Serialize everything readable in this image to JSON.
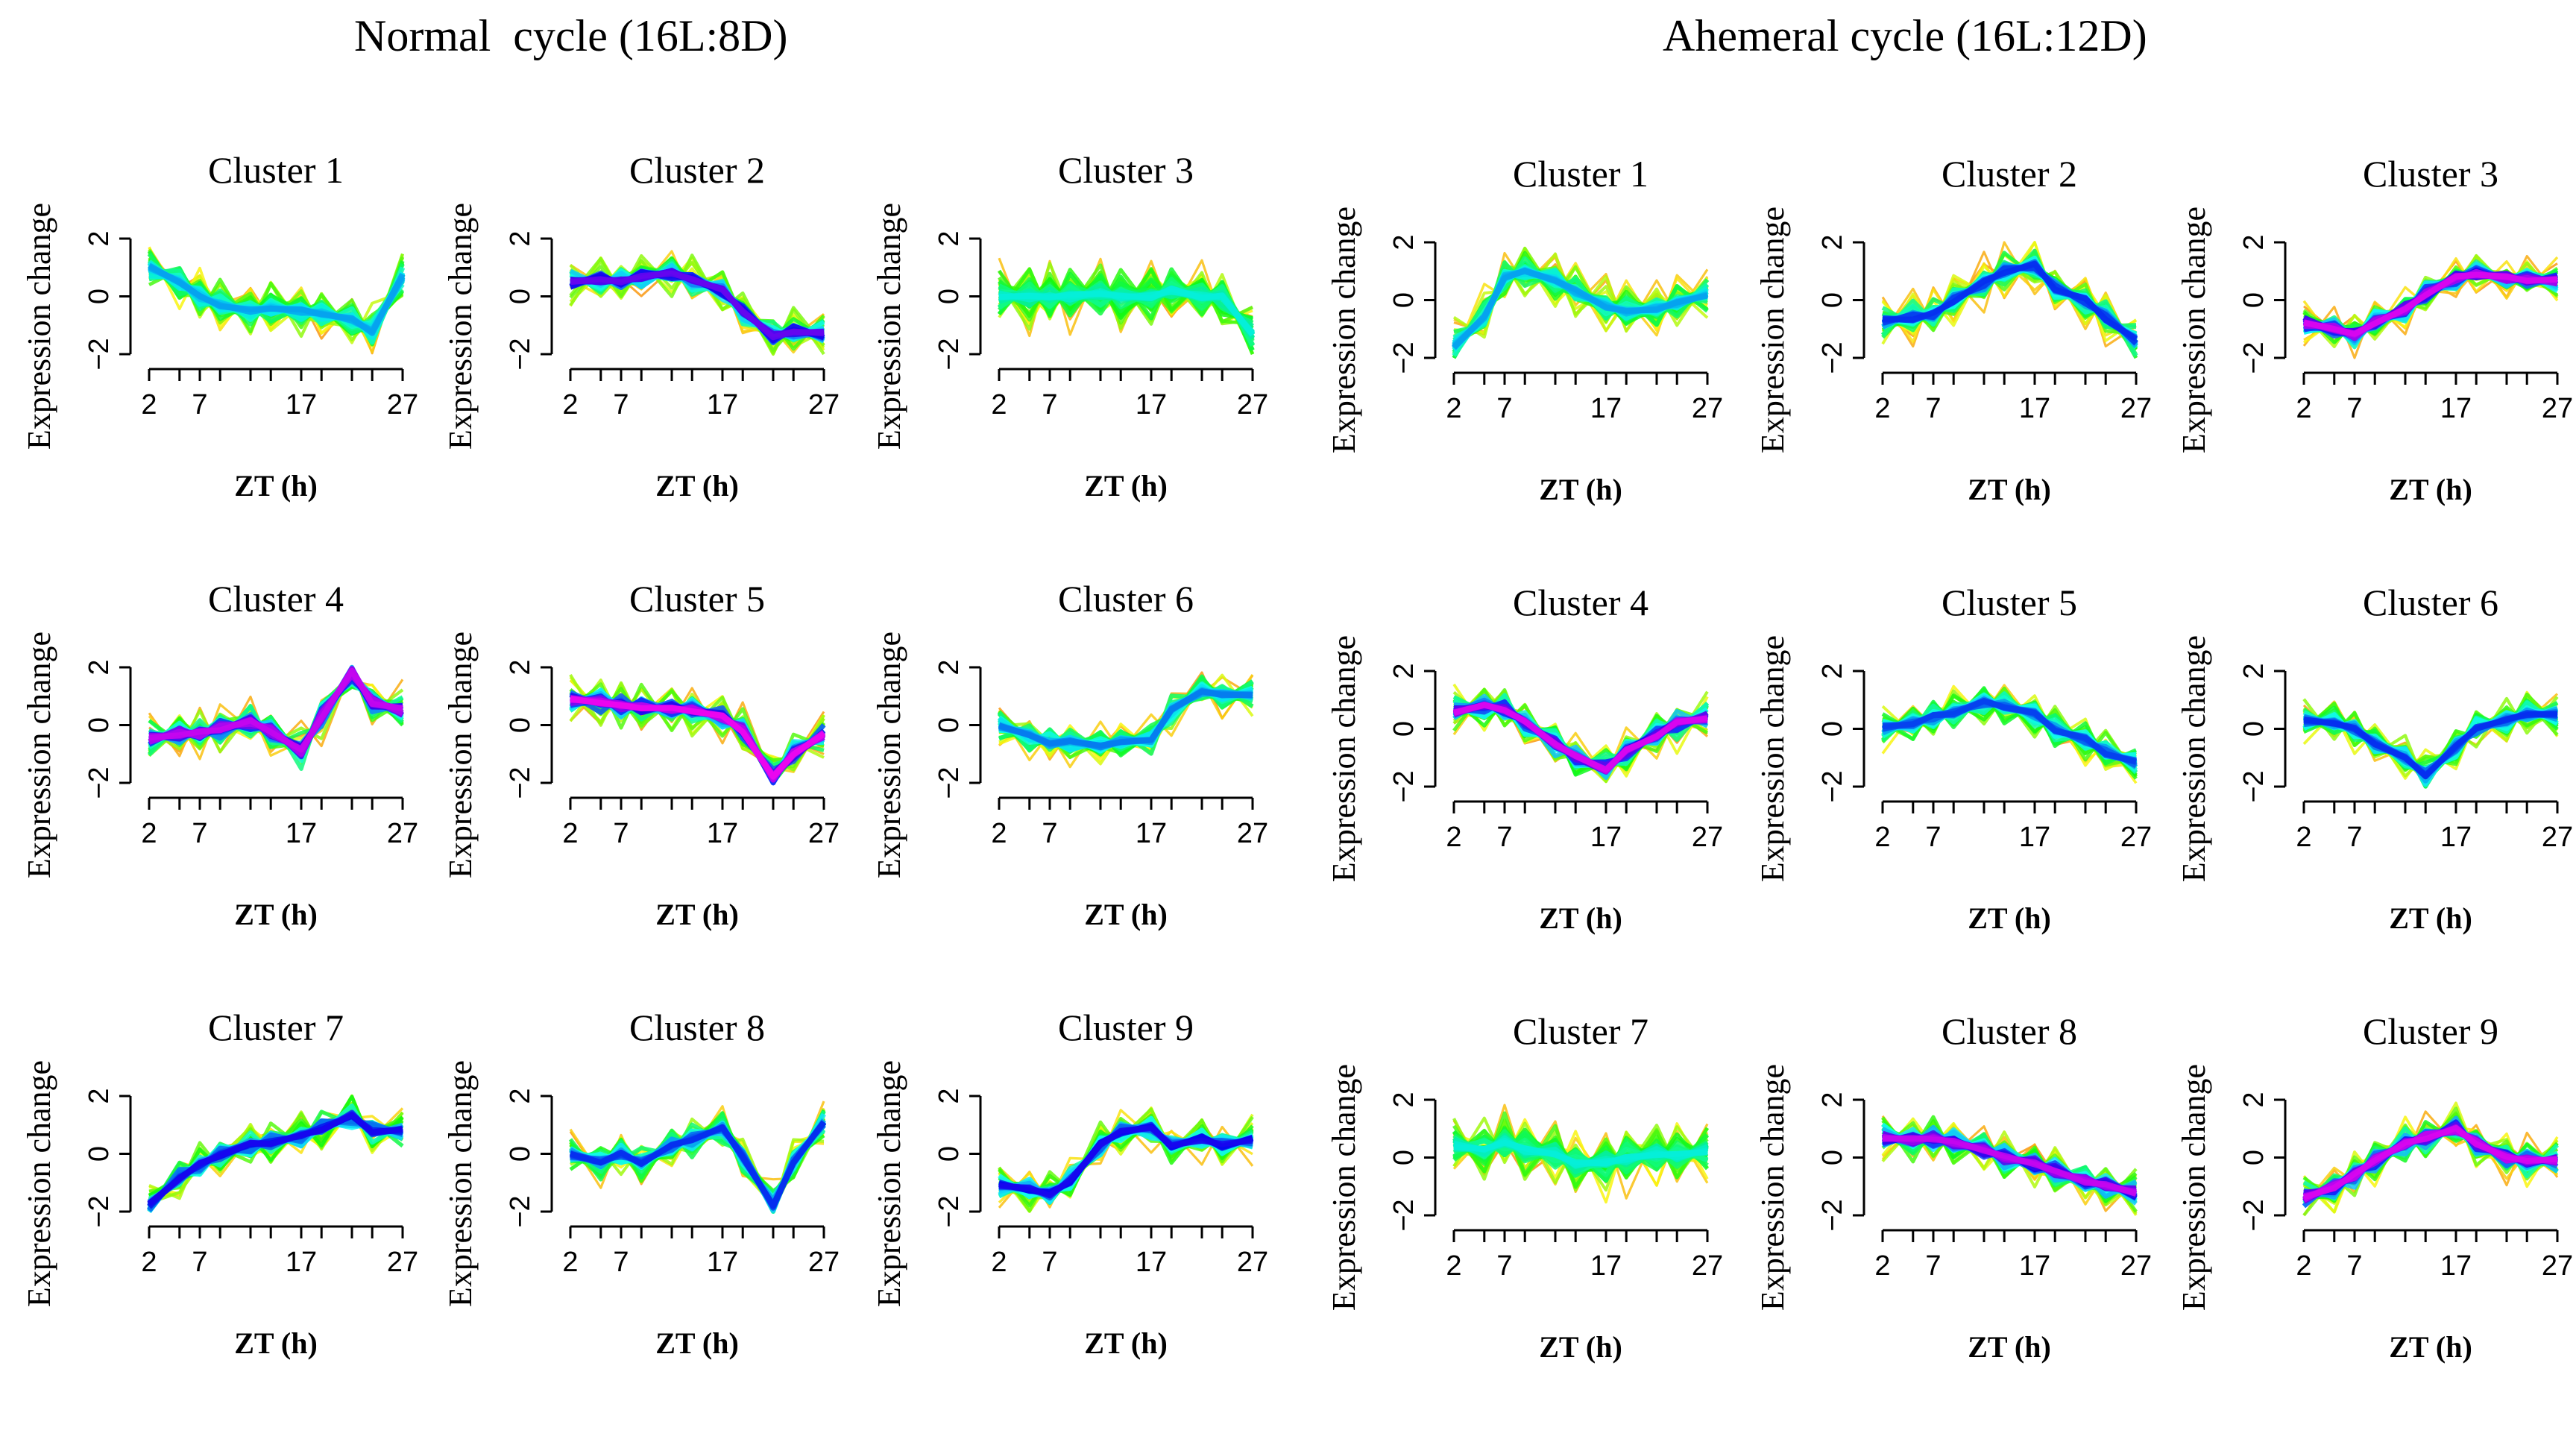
{
  "chart_data": [
    {
      "type": "line",
      "title": "Normal  cycle (16L:8D)",
      "xlabel": "ZT (h)",
      "ylabel": "Expression change",
      "x": [
        2,
        5,
        7,
        9,
        12,
        14,
        17,
        19,
        22,
        24,
        27
      ],
      "xticks": [
        "2",
        "7",
        "17",
        "27"
      ],
      "xlim": [
        2,
        27
      ],
      "yticks": [
        "2",
        "0",
        "−2"
      ],
      "ylim": [
        -2,
        2
      ],
      "clusters": [
        {
          "name": "Cluster 1",
          "center": [
            1.0,
            0.5,
            0.0,
            -0.3,
            -0.5,
            -0.4,
            -0.5,
            -0.6,
            -0.8,
            -1.2,
            0.7
          ],
          "hue": 200,
          "var": 1.0
        },
        {
          "name": "Cluster 2",
          "center": [
            0.5,
            0.6,
            0.5,
            0.7,
            0.8,
            0.6,
            0.2,
            -0.5,
            -1.4,
            -1.2,
            -1.3
          ],
          "hue": 265,
          "var": 0.8
        },
        {
          "name": "Cluster 3",
          "center": [
            0.0,
            0.0,
            0.0,
            0.0,
            0.1,
            0.0,
            0.0,
            0.2,
            0.0,
            0.0,
            -1.3
          ],
          "hue": 175,
          "var": 1.2
        },
        {
          "name": "Cluster 4",
          "center": [
            -0.5,
            -0.3,
            -0.3,
            -0.1,
            0.1,
            -0.2,
            -0.9,
            0.3,
            1.8,
            0.8,
            0.5
          ],
          "hue": 290,
          "var": 0.9
        },
        {
          "name": "Cluster 5",
          "center": [
            0.9,
            0.8,
            0.7,
            0.6,
            0.6,
            0.5,
            0.3,
            -0.2,
            -1.8,
            -1.0,
            -0.3
          ],
          "hue": 300,
          "var": 0.9
        },
        {
          "name": "Cluster 6",
          "center": [
            0.0,
            -0.4,
            -0.6,
            -0.6,
            -0.7,
            -0.6,
            -0.5,
            0.5,
            1.2,
            1.0,
            1.1
          ],
          "hue": 210,
          "var": 0.9
        },
        {
          "name": "Cluster 7",
          "center": [
            -1.8,
            -0.8,
            -0.4,
            0.0,
            0.3,
            0.4,
            0.6,
            0.9,
            1.3,
            0.8,
            0.8
          ],
          "hue": 245,
          "var": 0.9
        },
        {
          "name": "Cluster 8",
          "center": [
            0.0,
            -0.3,
            0.0,
            -0.3,
            0.3,
            0.5,
            0.9,
            -0.1,
            -1.8,
            -0.3,
            1.1
          ],
          "hue": 230,
          "var": 0.9
        },
        {
          "name": "Cluster 9",
          "center": [
            -1.1,
            -1.2,
            -1.4,
            -0.9,
            0.3,
            0.8,
            0.9,
            0.3,
            0.5,
            0.3,
            0.5
          ],
          "hue": 245,
          "var": 0.8
        }
      ]
    },
    {
      "type": "line",
      "title": "Ahemeral cycle (16L:12D)",
      "xlabel": "ZT (h)",
      "ylabel": "Expression change",
      "x": [
        2,
        5,
        7,
        9,
        12,
        14,
        17,
        19,
        22,
        24,
        27
      ],
      "xticks": [
        "2",
        "7",
        "17",
        "27"
      ],
      "xlim": [
        2,
        27
      ],
      "yticks": [
        "2",
        "0",
        "−2"
      ],
      "ylim": [
        -2,
        2
      ],
      "clusters": [
        {
          "name": "Cluster 1",
          "center": [
            -1.6,
            -0.6,
            0.8,
            1.0,
            0.7,
            0.3,
            -0.2,
            -0.4,
            -0.3,
            -0.1,
            0.2
          ],
          "hue": 200,
          "var": 1.0
        },
        {
          "name": "Cluster 2",
          "center": [
            -0.7,
            -0.6,
            -0.5,
            0.0,
            0.6,
            1.0,
            1.2,
            0.4,
            0.0,
            -0.6,
            -1.4
          ],
          "hue": 230,
          "var": 0.9
        },
        {
          "name": "Cluster 3",
          "center": [
            -0.8,
            -1.0,
            -1.2,
            -0.8,
            -0.3,
            0.2,
            0.8,
            0.9,
            0.8,
            0.7,
            0.7
          ],
          "hue": 295,
          "var": 0.8
        },
        {
          "name": "Cluster 4",
          "center": [
            0.6,
            0.8,
            0.7,
            0.2,
            -0.5,
            -1.0,
            -1.4,
            -0.8,
            -0.2,
            0.2,
            0.4
          ],
          "hue": 295,
          "var": 0.9
        },
        {
          "name": "Cluster 5",
          "center": [
            0.0,
            0.2,
            0.4,
            0.6,
            0.9,
            0.8,
            0.5,
            0.0,
            -0.4,
            -0.8,
            -1.2
          ],
          "hue": 225,
          "var": 0.8
        },
        {
          "name": "Cluster 6",
          "center": [
            0.3,
            0.2,
            0.0,
            -0.5,
            -1.0,
            -1.6,
            -0.6,
            0.0,
            0.3,
            0.5,
            0.5
          ],
          "hue": 230,
          "var": 0.8
        },
        {
          "name": "Cluster 7",
          "center": [
            0.4,
            0.3,
            0.5,
            0.3,
            0.1,
            -0.2,
            -0.2,
            0.0,
            0.1,
            0.1,
            0.2
          ],
          "hue": 175,
          "var": 1.2
        },
        {
          "name": "Cluster 8",
          "center": [
            0.7,
            0.6,
            0.7,
            0.5,
            0.3,
            0.0,
            -0.2,
            -0.5,
            -0.8,
            -1.0,
            -1.2
          ],
          "hue": 290,
          "var": 0.9
        },
        {
          "name": "Cluster 9",
          "center": [
            -1.4,
            -1.0,
            -0.6,
            -0.1,
            0.5,
            0.7,
            1.0,
            0.5,
            0.0,
            -0.1,
            -0.1
          ],
          "hue": 295,
          "var": 0.8
        }
      ]
    }
  ]
}
